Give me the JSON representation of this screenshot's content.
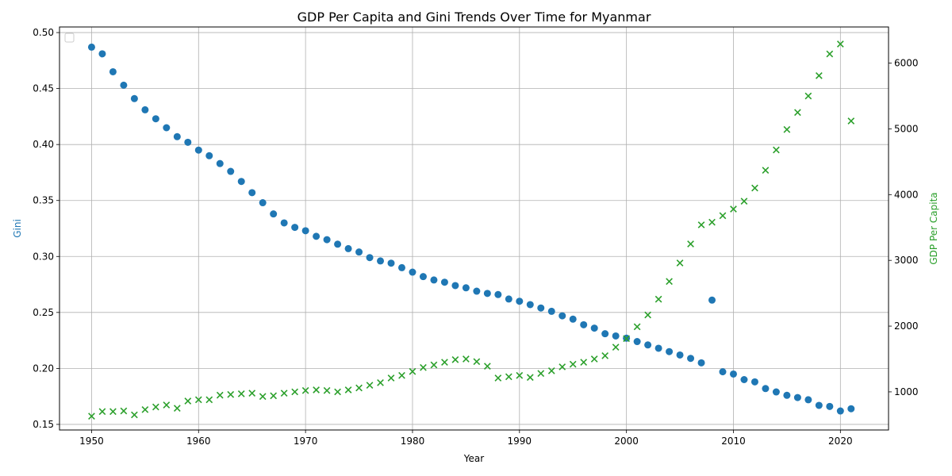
{
  "chart_data": {
    "type": "scatter",
    "title": "GDP Per Capita and Gini Trends Over Time for Myanmar",
    "xlabel": "Year",
    "ylabel_left": "Gini",
    "ylabel_right": "GDP Per Capita",
    "xlim": [
      1947,
      2024.5
    ],
    "ylim_left": [
      0.145,
      0.505
    ],
    "ylim_right": [
      420,
      6550
    ],
    "x_ticks": [
      1950,
      1960,
      1970,
      1980,
      1990,
      2000,
      2010,
      2020
    ],
    "y_left_ticks": [
      0.15,
      0.2,
      0.25,
      0.3,
      0.35,
      0.4,
      0.45,
      0.5
    ],
    "y_right_ticks": [
      1000,
      2000,
      3000,
      4000,
      5000,
      6000
    ],
    "grid": true,
    "legend": "top-left, empty",
    "colors": {
      "gini": "#1f77b4",
      "gdp": "#2ca02c"
    },
    "series": [
      {
        "axis": "left",
        "marker": "circle",
        "x": [
          1950,
          1951,
          1952,
          1953,
          1954,
          1955,
          1956,
          1957,
          1958,
          1959,
          1960,
          1961,
          1962,
          1963,
          1964,
          1965,
          1966,
          1967,
          1968,
          1969,
          1970,
          1971,
          1972,
          1973,
          1974,
          1975,
          1976,
          1977,
          1978,
          1979,
          1980,
          1981,
          1982,
          1983,
          1984,
          1985,
          1986,
          1987,
          1988,
          1989,
          1990,
          1991,
          1992,
          1993,
          1994,
          1995,
          1996,
          1997,
          1998,
          1999,
          2000,
          2001,
          2002,
          2003,
          2004,
          2005,
          2006,
          2007,
          2008,
          2009,
          2010,
          2011,
          2012,
          2013,
          2014,
          2015,
          2016,
          2017,
          2018,
          2019,
          2020,
          2021
        ],
        "y": [
          0.487,
          0.481,
          0.465,
          0.453,
          0.441,
          0.431,
          0.423,
          0.415,
          0.407,
          0.402,
          0.395,
          0.39,
          0.383,
          0.376,
          0.367,
          0.357,
          0.348,
          0.338,
          0.33,
          0.326,
          0.323,
          0.318,
          0.315,
          0.311,
          0.307,
          0.304,
          0.299,
          0.296,
          0.294,
          0.29,
          0.286,
          0.282,
          0.279,
          0.277,
          0.274,
          0.272,
          0.269,
          0.267,
          0.266,
          0.262,
          0.26,
          0.257,
          0.254,
          0.251,
          0.247,
          0.244,
          0.239,
          0.236,
          0.231,
          0.229,
          0.227,
          0.224,
          0.221,
          0.218,
          0.215,
          0.212,
          0.209,
          0.205,
          0.261,
          0.197,
          0.195,
          0.19,
          0.188,
          0.182,
          0.179,
          0.176,
          0.174,
          0.172,
          0.167,
          0.166,
          0.162,
          0.164
        ]
      },
      {
        "axis": "right",
        "marker": "x",
        "x": [
          1950,
          1951,
          1952,
          1953,
          1954,
          1955,
          1956,
          1957,
          1958,
          1959,
          1960,
          1961,
          1962,
          1963,
          1964,
          1965,
          1966,
          1967,
          1968,
          1969,
          1970,
          1971,
          1972,
          1973,
          1974,
          1975,
          1976,
          1977,
          1978,
          1979,
          1980,
          1981,
          1982,
          1983,
          1984,
          1985,
          1986,
          1987,
          1988,
          1989,
          1990,
          1991,
          1992,
          1993,
          1994,
          1995,
          1996,
          1997,
          1998,
          1999,
          2000,
          2001,
          2002,
          2003,
          2004,
          2005,
          2006,
          2007,
          2008,
          2009,
          2010,
          2011,
          2012,
          2013,
          2014,
          2015,
          2016,
          2017,
          2018,
          2019,
          2020,
          2021
        ],
        "y": [
          630,
          700,
          700,
          710,
          650,
          730,
          770,
          800,
          750,
          860,
          880,
          880,
          950,
          960,
          970,
          980,
          930,
          940,
          980,
          1000,
          1020,
          1030,
          1020,
          1000,
          1030,
          1060,
          1100,
          1140,
          1210,
          1250,
          1310,
          1370,
          1410,
          1450,
          1490,
          1500,
          1460,
          1390,
          1210,
          1230,
          1250,
          1220,
          1280,
          1320,
          1380,
          1420,
          1450,
          1500,
          1550,
          1680,
          1810,
          1990,
          2170,
          2410,
          2680,
          2960,
          3250,
          3540,
          3580,
          3680,
          3780,
          3900,
          4100,
          4370,
          4680,
          4990,
          5250,
          5500,
          5810,
          6140,
          6290,
          5120
        ]
      }
    ]
  }
}
